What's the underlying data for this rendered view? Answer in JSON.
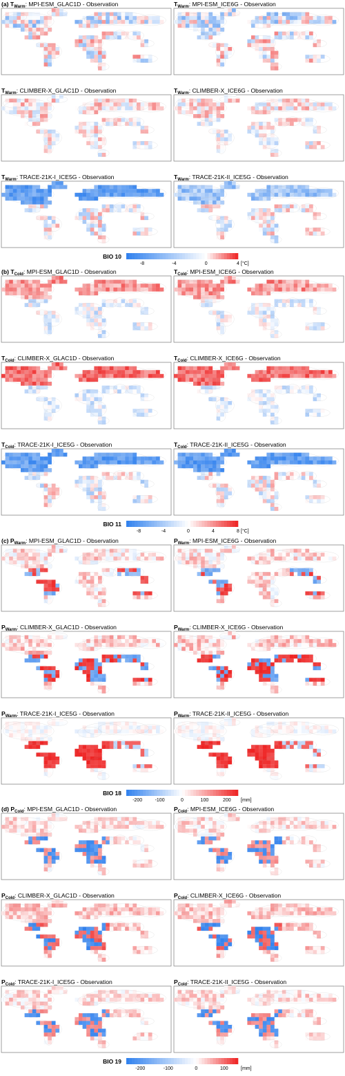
{
  "figure": {
    "colors": {
      "negative": "#2f80ee",
      "neutral": "#ffffff",
      "positive": "#ee2222",
      "land_outline": "#9a9a9a",
      "panel_border": "#888888"
    },
    "sections": [
      {
        "label": "(a)",
        "panels": [
          {
            "var": "T",
            "sub": "Warm",
            "title": ": MPI-ESM_GLAC1D - Observation",
            "pattern": "mixed"
          },
          {
            "var": "T",
            "sub": "Warm",
            "title": ": MPI-ESM_ICE6G - Observation",
            "pattern": "mixed"
          },
          {
            "var": "T",
            "sub": "Warm",
            "title": ": CLIMBER-X_GLAC1D - Observation",
            "pattern": "warm_mild"
          },
          {
            "var": "T",
            "sub": "Warm",
            "title": ": CLIMBER-X_ICE6G - Observation",
            "pattern": "warm_mild"
          },
          {
            "var": "T",
            "sub": "Warm",
            "title": ": TRACE-21K-I_ICE5G - Observation",
            "pattern": "cold_north"
          },
          {
            "var": "T",
            "sub": "Warm",
            "title": ": TRACE-21K-II_ICE5G - Observation",
            "pattern": "cold_north_mild"
          }
        ],
        "colorbar": {
          "name": "BIO 10",
          "ticks": [
            "-8",
            "-4",
            "0",
            "4"
          ],
          "unit": "[°C]",
          "range": [
            -10,
            4
          ]
        }
      },
      {
        "label": "(b)",
        "panels": [
          {
            "var": "T",
            "sub": "Cold",
            "title": ": MPI-ESM_GLAC1D - Observation",
            "pattern": "warm_north"
          },
          {
            "var": "T",
            "sub": "Cold",
            "title": ": MPI-ESM_ICE6G - Observation",
            "pattern": "warm_north"
          },
          {
            "var": "T",
            "sub": "Cold",
            "title": ": CLIMBER-X_GLAC1D - Observation",
            "pattern": "hot_north"
          },
          {
            "var": "T",
            "sub": "Cold",
            "title": ": CLIMBER-X_ICE6G - Observation",
            "pattern": "hot_north"
          },
          {
            "var": "T",
            "sub": "Cold",
            "title": ": TRACE-21K-I_ICE5G - Observation",
            "pattern": "cold_north"
          },
          {
            "var": "T",
            "sub": "Cold",
            "title": ": TRACE-21K-II_ICE5G - Observation",
            "pattern": "cold_north"
          }
        ],
        "colorbar": {
          "name": "BIO 11",
          "ticks": [
            "-8",
            "-4",
            "0",
            "4",
            "8"
          ],
          "unit": "[°C]",
          "range": [
            -10,
            8
          ]
        }
      },
      {
        "label": "(c)",
        "panels": [
          {
            "var": "P",
            "sub": "Warm",
            "title": ": MPI-ESM_GLAC1D - Observation",
            "pattern": "wet_mixed"
          },
          {
            "var": "P",
            "sub": "Warm",
            "title": ": MPI-ESM_ICE6G - Observation",
            "pattern": "wet_mixed"
          },
          {
            "var": "P",
            "sub": "Warm",
            "title": ": CLIMBER-X_GLAC1D - Observation",
            "pattern": "wet_strong"
          },
          {
            "var": "P",
            "sub": "Warm",
            "title": ": CLIMBER-X_ICE6G - Observation",
            "pattern": "wet_strong"
          },
          {
            "var": "P",
            "sub": "Warm",
            "title": ": TRACE-21K-I_ICE5G - Observation",
            "pattern": "wet_tropics"
          },
          {
            "var": "P",
            "sub": "Warm",
            "title": ": TRACE-21K-II_ICE5G - Observation",
            "pattern": "wet_tropics"
          }
        ],
        "colorbar": {
          "name": "BIO 18",
          "ticks": [
            "-200",
            "-100",
            "0",
            "100",
            "200"
          ],
          "unit": "[mm]",
          "range": [
            -250,
            250
          ]
        }
      },
      {
        "label": "(d)",
        "panels": [
          {
            "var": "P",
            "sub": "Cold",
            "title": ": MPI-ESM_GLAC1D - Observation",
            "pattern": "dry_mixed"
          },
          {
            "var": "P",
            "sub": "Cold",
            "title": ": MPI-ESM_ICE6G - Observation",
            "pattern": "dry_mixed"
          },
          {
            "var": "P",
            "sub": "Cold",
            "title": ": CLIMBER-X_GLAC1D - Observation",
            "pattern": "dry_strong"
          },
          {
            "var": "P",
            "sub": "Cold",
            "title": ": CLIMBER-X_ICE6G - Observation",
            "pattern": "dry_strong"
          },
          {
            "var": "P",
            "sub": "Cold",
            "title": ": TRACE-21K-I_ICE5G - Observation",
            "pattern": "dry_mixed"
          },
          {
            "var": "P",
            "sub": "Cold",
            "title": ": TRACE-21K-II_ICE5G - Observation",
            "pattern": "dry_mixed"
          }
        ],
        "colorbar": {
          "name": "BIO 19",
          "ticks": [
            "-200",
            "-100",
            "0",
            "100"
          ],
          "unit": "[mm]",
          "range": [
            -250,
            150
          ]
        }
      }
    ]
  }
}
